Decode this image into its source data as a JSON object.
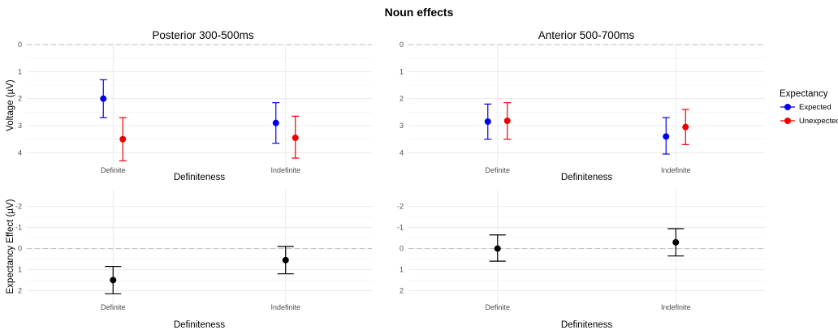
{
  "title": "Noun effects",
  "colors": {
    "Expected": "#0000EE",
    "Unexpected": "#EE0000",
    "effect": "#000000"
  },
  "legend": {
    "title": "Expectancy",
    "items": [
      {
        "label": "Expected",
        "color": "#0000EE"
      },
      {
        "label": "Unexpected",
        "color": "#EE0000"
      }
    ]
  },
  "chart_data": [
    {
      "type": "scatter",
      "error_bars": true,
      "title": "Posterior 300-500ms",
      "xlabel": "Definiteness",
      "ylabel": "Voltage (µV)",
      "categories": [
        "Definite",
        "Indefinite"
      ],
      "y_reversed": true,
      "ylim": [
        0,
        4.5
      ],
      "yticks": [
        0,
        1,
        2,
        3,
        4
      ],
      "reference_line": 0,
      "series": [
        {
          "name": "Expected",
          "values": [
            2.0,
            2.9
          ],
          "lower": [
            1.3,
            2.15
          ],
          "upper": [
            2.7,
            3.65
          ]
        },
        {
          "name": "Unexpected",
          "values": [
            3.5,
            3.45
          ],
          "lower": [
            2.7,
            2.65
          ],
          "upper": [
            4.3,
            4.2
          ]
        }
      ]
    },
    {
      "type": "scatter",
      "error_bars": true,
      "title": "Anterior 500-700ms",
      "xlabel": "Definiteness",
      "ylabel": "",
      "categories": [
        "Definite",
        "Indefinite"
      ],
      "y_reversed": true,
      "ylim": [
        0,
        4.5
      ],
      "yticks": [
        0,
        1,
        2,
        3,
        4
      ],
      "reference_line": 0,
      "series": [
        {
          "name": "Expected",
          "values": [
            2.85,
            3.4
          ],
          "lower": [
            2.2,
            2.7
          ],
          "upper": [
            3.5,
            4.05
          ]
        },
        {
          "name": "Unexpected",
          "values": [
            2.82,
            3.05
          ],
          "lower": [
            2.15,
            2.4
          ],
          "upper": [
            3.5,
            3.7
          ]
        }
      ]
    },
    {
      "type": "scatter",
      "error_bars": true,
      "title": "",
      "xlabel": "Definiteness",
      "ylabel": "Expectancy Effect (µV)",
      "categories": [
        "Definite",
        "Indefinite"
      ],
      "y_reversed": true,
      "ylim": [
        -2.8,
        2.6
      ],
      "yticks": [
        -2,
        -1,
        0,
        1,
        2
      ],
      "reference_line": 0,
      "series": [
        {
          "values": [
            1.5,
            0.55
          ],
          "lower": [
            0.85,
            -0.1
          ],
          "upper": [
            2.15,
            1.2
          ]
        }
      ]
    },
    {
      "type": "scatter",
      "error_bars": true,
      "title": "",
      "xlabel": "Definiteness",
      "ylabel": "",
      "categories": [
        "Definite",
        "Indefinite"
      ],
      "y_reversed": true,
      "ylim": [
        -2.8,
        2.6
      ],
      "yticks": [
        -2,
        -1,
        0,
        1,
        2
      ],
      "reference_line": 0,
      "series": [
        {
          "values": [
            0.0,
            -0.3
          ],
          "lower": [
            -0.65,
            -0.95
          ],
          "upper": [
            0.6,
            0.35
          ]
        }
      ]
    }
  ]
}
